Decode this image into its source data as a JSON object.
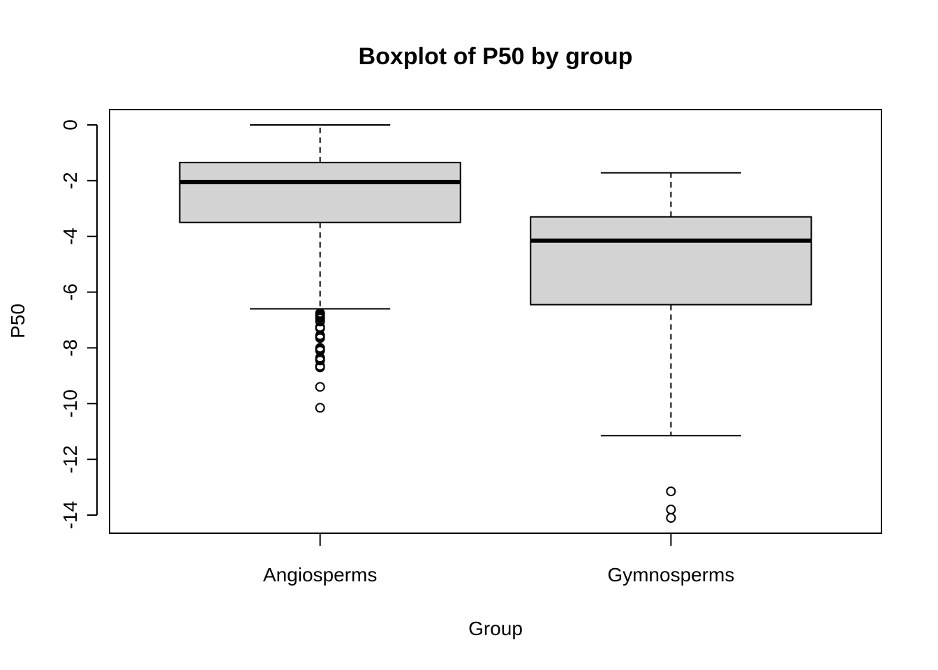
{
  "chart_data": {
    "type": "boxplot",
    "title": "Boxplot of P50 by group",
    "xlabel": "Group",
    "ylabel": "P50",
    "ylim": [
      -14.65,
      0.55
    ],
    "yticks": [
      0,
      -2,
      -4,
      -6,
      -8,
      -10,
      -12,
      -14
    ],
    "ytick_labels": [
      "0",
      "-2",
      "-4",
      "-6",
      "-8",
      "-10",
      "-12",
      "-14"
    ],
    "grid": false,
    "box_fill": "#d3d3d3",
    "categories": [
      "Angiosperms",
      "Gymnosperms"
    ],
    "boxes": [
      {
        "category": "Angiosperms",
        "whisker_low": -6.6,
        "q1": -3.5,
        "median": -2.05,
        "q3": -1.35,
        "whisker_high": 0.0,
        "outliers": [
          -6.75,
          -6.8,
          -6.85,
          -6.9,
          -6.95,
          -7.05,
          -7.25,
          -7.3,
          -7.55,
          -7.6,
          -7.65,
          -8.0,
          -8.05,
          -8.1,
          -8.35,
          -8.4,
          -8.45,
          -8.65,
          -8.7,
          -9.4,
          -10.15
        ]
      },
      {
        "category": "Gymnosperms",
        "whisker_low": -11.15,
        "q1": -6.45,
        "median": -4.15,
        "q3": -3.3,
        "whisker_high": -1.72,
        "outliers": [
          -13.15,
          -13.8,
          -14.1
        ]
      }
    ]
  }
}
